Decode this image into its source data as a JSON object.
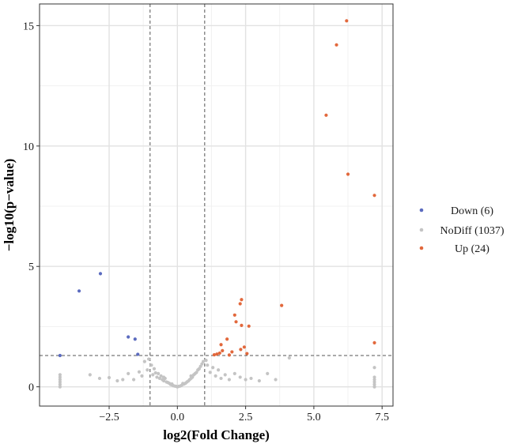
{
  "chart_data": {
    "type": "scatter",
    "title": "",
    "xlabel": "log2(Fold Change)",
    "ylabel": "−log10(p−value)",
    "xlim": [
      -5.05,
      7.9
    ],
    "ylim": [
      -0.8,
      15.9
    ],
    "x_ticks": [
      -2.5,
      0.0,
      2.5,
      5.0,
      7.5
    ],
    "x_tick_labels": [
      "−2.5",
      "0.0",
      "2.5",
      "5.0",
      "7.5"
    ],
    "y_ticks": [
      0,
      5,
      10,
      15
    ],
    "y_tick_labels": [
      "0",
      "5",
      "10",
      "15"
    ],
    "grid": true,
    "thresholds": {
      "x": [
        -1,
        1
      ],
      "y": 1.3
    },
    "legend_position": "right",
    "series": [
      {
        "name": "Down (6)",
        "color": "#5b6bbf",
        "points": [
          [
            -4.3,
            1.3
          ],
          [
            -3.6,
            3.98
          ],
          [
            -2.82,
            4.7
          ],
          [
            -1.8,
            2.07
          ],
          [
            -1.55,
            1.98
          ],
          [
            -1.45,
            1.35
          ]
        ]
      },
      {
        "name": "NoDiff (1037)",
        "color": "#c4c4c4",
        "points": [
          [
            -4.3,
            0.0
          ],
          [
            -4.3,
            0.1
          ],
          [
            -4.3,
            0.2
          ],
          [
            -4.3,
            0.3
          ],
          [
            -4.3,
            0.4
          ],
          [
            -4.3,
            0.5
          ],
          [
            7.22,
            0.0
          ],
          [
            7.22,
            0.1
          ],
          [
            7.22,
            0.2
          ],
          [
            7.22,
            0.3
          ],
          [
            7.22,
            0.4
          ],
          [
            7.22,
            0.8
          ],
          [
            -3.2,
            0.5
          ],
          [
            -2.85,
            0.35
          ],
          [
            -2.5,
            0.38
          ],
          [
            -2.2,
            0.25
          ],
          [
            -2.0,
            0.3
          ],
          [
            -1.8,
            0.55
          ],
          [
            -1.6,
            0.3
          ],
          [
            -1.4,
            0.62
          ],
          [
            -1.3,
            0.45
          ],
          [
            -1.2,
            1.05
          ],
          [
            -1.1,
            0.7
          ],
          [
            -1.05,
            1.15
          ],
          [
            -0.95,
            0.9
          ],
          [
            -0.9,
            0.5
          ],
          [
            -0.85,
            0.75
          ],
          [
            -0.8,
            0.58
          ],
          [
            -0.75,
            0.4
          ],
          [
            -0.7,
            0.55
          ],
          [
            -0.65,
            0.35
          ],
          [
            -0.6,
            0.45
          ],
          [
            -0.55,
            0.3
          ],
          [
            -0.5,
            0.25
          ],
          [
            -0.45,
            0.35
          ],
          [
            -0.4,
            0.2
          ],
          [
            -0.35,
            0.18
          ],
          [
            -0.3,
            0.15
          ],
          [
            -0.25,
            0.1
          ],
          [
            -0.2,
            0.08
          ],
          [
            -0.15,
            0.05
          ],
          [
            -0.1,
            0.03
          ],
          [
            -0.05,
            0.02
          ],
          [
            0.0,
            0.0
          ],
          [
            0.05,
            0.02
          ],
          [
            0.1,
            0.03
          ],
          [
            0.15,
            0.06
          ],
          [
            0.2,
            0.1
          ],
          [
            0.25,
            0.12
          ],
          [
            0.3,
            0.15
          ],
          [
            0.35,
            0.2
          ],
          [
            0.4,
            0.24
          ],
          [
            0.45,
            0.3
          ],
          [
            0.5,
            0.35
          ],
          [
            0.55,
            0.4
          ],
          [
            0.6,
            0.5
          ],
          [
            0.65,
            0.55
          ],
          [
            0.7,
            0.6
          ],
          [
            0.75,
            0.7
          ],
          [
            0.8,
            0.75
          ],
          [
            0.85,
            0.85
          ],
          [
            0.9,
            0.95
          ],
          [
            0.95,
            1.05
          ],
          [
            1.05,
            1.1
          ],
          [
            1.1,
            0.9
          ],
          [
            1.2,
            0.6
          ],
          [
            1.3,
            0.8
          ],
          [
            1.4,
            0.45
          ],
          [
            1.5,
            0.7
          ],
          [
            1.6,
            0.35
          ],
          [
            1.75,
            0.5
          ],
          [
            1.9,
            0.3
          ],
          [
            2.1,
            0.55
          ],
          [
            2.3,
            0.4
          ],
          [
            2.5,
            0.3
          ],
          [
            2.7,
            0.35
          ],
          [
            3.0,
            0.25
          ],
          [
            3.3,
            0.55
          ],
          [
            3.6,
            0.3
          ],
          [
            4.1,
            1.2
          ],
          [
            -0.5,
            0.4
          ],
          [
            0.5,
            0.45
          ],
          [
            -0.2,
            0.12
          ],
          [
            0.2,
            0.14
          ]
        ]
      },
      {
        "name": "Up (24)",
        "color": "#e2683c",
        "points": [
          [
            6.2,
            15.2
          ],
          [
            5.83,
            14.2
          ],
          [
            5.45,
            11.28
          ],
          [
            6.25,
            8.83
          ],
          [
            7.22,
            7.95
          ],
          [
            3.82,
            3.38
          ],
          [
            2.35,
            3.62
          ],
          [
            2.3,
            3.45
          ],
          [
            2.1,
            2.98
          ],
          [
            2.15,
            2.7
          ],
          [
            2.35,
            2.55
          ],
          [
            2.62,
            2.52
          ],
          [
            1.82,
            1.98
          ],
          [
            1.6,
            1.75
          ],
          [
            2.45,
            1.65
          ],
          [
            2.32,
            1.55
          ],
          [
            1.65,
            1.5
          ],
          [
            1.55,
            1.4
          ],
          [
            1.45,
            1.36
          ],
          [
            1.35,
            1.33
          ],
          [
            1.9,
            1.32
          ],
          [
            2.55,
            1.38
          ],
          [
            2.0,
            1.45
          ],
          [
            7.22,
            1.83
          ]
        ]
      }
    ]
  }
}
